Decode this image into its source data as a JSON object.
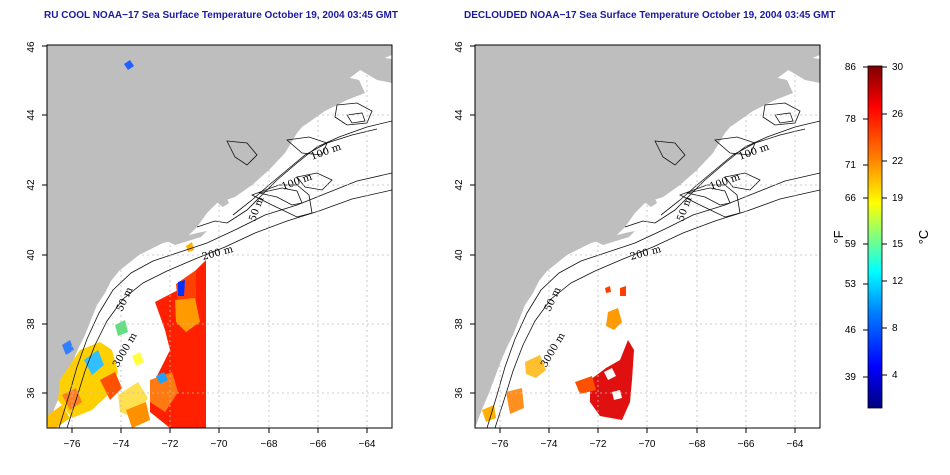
{
  "panels": [
    {
      "title": "RU COOL NOAA−17 Sea Surface Temperature October 19, 2004 03:45 GMT",
      "depth_labels": [
        "100 m",
        "100 m",
        "50 m",
        "200 m",
        "50 m",
        "3000 m"
      ]
    },
    {
      "title": "DECLOUDED NOAA−17 Sea Surface Temperature October 19, 2004 03:45 GMT",
      "depth_labels": [
        "100 m",
        "100 m",
        "50 m",
        "200 m",
        "50 m",
        "3000 m"
      ]
    }
  ],
  "axes": {
    "x_ticks": [
      "−76",
      "−74",
      "−72",
      "−70",
      "−68",
      "−66",
      "−64"
    ],
    "y_ticks": [
      "36",
      "38",
      "40",
      "42",
      "44",
      "46"
    ],
    "xlim": [
      -77,
      -63
    ],
    "ylim": [
      35,
      46
    ]
  },
  "colorbar": {
    "fahrenheit_label": "°F",
    "celsius_label": "°C",
    "fahrenheit_ticks": [
      "86",
      "78",
      "71",
      "66",
      "59",
      "53",
      "46",
      "39"
    ],
    "celsius_ticks": [
      "30",
      "26",
      "22",
      "19",
      "15",
      "12",
      "8",
      "4"
    ],
    "colors": [
      "#00007f",
      "#0000ff",
      "#0080ff",
      "#00ffff",
      "#80ff80",
      "#ffff00",
      "#ff8000",
      "#ff0000",
      "#7f0000"
    ]
  },
  "colors": {
    "land": "#bebebe",
    "ocean": "#ffffff",
    "grid": "#bdbdbd",
    "title": "#1a1aa0"
  }
}
